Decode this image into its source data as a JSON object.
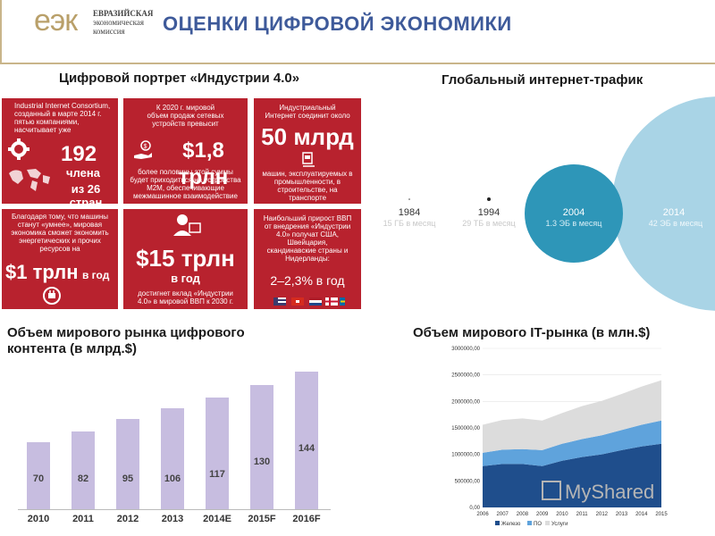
{
  "header": {
    "logo_mark": "еэк",
    "logo_line1": "ЕВРАЗИЙСКАЯ",
    "logo_line2": "экономическая",
    "logo_line3": "комиссия",
    "title": "ОЦЕНКИ ЦИФРОВОЙ ЭКОНОМИКИ"
  },
  "portrait": {
    "title": "Цифровой портрет «Индустрии 4.0»",
    "t1": {
      "text": "Industrial Internet Consortium, созданный в марте 2014 г. пятью компаниями, насчитывает уже",
      "big": "192",
      "mid1": "члена",
      "mid2": "из 26 стран"
    },
    "t2": {
      "text": "К 2020 г. мировой объем продаж сетевых устройств превысит",
      "big": "$1,8 трлн",
      "text2": "более половины этой суммы будет приходиться на устройства M2M, обеспечивающие межмашинное взаимодействие"
    },
    "t3": {
      "text": "Индустриальный Интернет соединит около",
      "big": "50 млрд",
      "text2": "машин, эксплуатируемых в промышленности, в строительстве, на транспорте"
    },
    "t4": {
      "text": "Благодаря тому, что машины станут «умнее», мировая экономика сможет экономить энергетических и прочих ресурсов на",
      "big": "$1 трлн",
      "mid": "в год"
    },
    "t5": {
      "big": "$15 трлн",
      "mid": "в год",
      "text2": "достигнет вклад «Индустрии 4.0» в мировой ВВП к 2030 г."
    },
    "t6": {
      "text": "Наибольший прирост ВВП от внедрения «Индустрии 4.0» получат США, Швейцария, скандинавские страны и Нидерланды:",
      "big": "2–2,3% в год"
    }
  },
  "traffic": {
    "title": "Глобальный интернет-трафик",
    "items": [
      {
        "year": "1984",
        "sub": "15 ГБ в месяц"
      },
      {
        "year": "1994",
        "sub": "29 ТБ в месяц"
      },
      {
        "year": "2004",
        "sub": "1.3 ЭБ в месяц"
      },
      {
        "year": "2014",
        "sub": "42 ЭБ в месяц"
      }
    ],
    "colors": {
      "circle2004": "#2e96b8",
      "circle2014": "#a9d4e6"
    }
  },
  "content_chart": {
    "title_line1": "Объем мирового рынка цифрового",
    "title_line2": "контента (в млрд.$)"
  },
  "it_chart": {
    "title": "Объем мирового IT-рынка (в млн.$)"
  },
  "watermark": "MyShared",
  "chart_data": [
    {
      "type": "bar",
      "categories": [
        "2010",
        "2011",
        "2012",
        "2013",
        "2014E",
        "2015F",
        "2016F"
      ],
      "values": [
        70,
        82,
        95,
        106,
        117,
        130,
        144
      ],
      "title": "Объем мирового рынка цифрового контента (в млрд.$)",
      "ylim": [
        0,
        150
      ],
      "color": "#c7bde0"
    },
    {
      "type": "area",
      "categories": [
        "2006",
        "2007",
        "2008",
        "2009",
        "2010",
        "2011",
        "2012",
        "2013",
        "2014",
        "2015"
      ],
      "series": [
        {
          "name": "Железо",
          "color": "#1f4e8c",
          "values": [
            780000,
            820000,
            820000,
            780000,
            880000,
            950000,
            1000000,
            1080000,
            1150000,
            1200000
          ]
        },
        {
          "name": "ПО",
          "color": "#5fa3dc",
          "values": [
            250000,
            270000,
            280000,
            300000,
            320000,
            340000,
            360000,
            380000,
            410000,
            440000
          ]
        },
        {
          "name": "Услуги",
          "color": "#dcdcdc",
          "values": [
            530000,
            560000,
            580000,
            560000,
            580000,
            620000,
            650000,
            680000,
            720000,
            760000
          ]
        }
      ],
      "yticks": [
        "0,00",
        "500000,00",
        "1000000,00",
        "1500000,00",
        "2000000,00",
        "2500000,00",
        "3000000,00"
      ],
      "ylim": [
        0,
        3000000
      ],
      "stacked": true,
      "legend": "bottom"
    }
  ]
}
